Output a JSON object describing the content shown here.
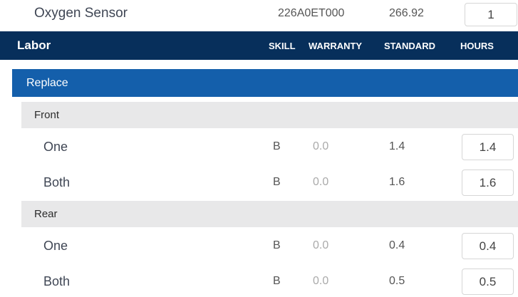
{
  "part": {
    "name": "Oxygen Sensor",
    "number": "226A0ET000",
    "price": "266.92",
    "quantity": "1"
  },
  "labor": {
    "title": "Labor",
    "columns": [
      "SKILL",
      "WARRANTY",
      "STANDARD",
      "HOURS"
    ],
    "operation": "Replace",
    "groups": [
      {
        "name": "Front",
        "rows": [
          {
            "label": "One",
            "skill": "B",
            "warranty": "0.0",
            "standard": "1.4",
            "hours": "1.4"
          },
          {
            "label": "Both",
            "skill": "B",
            "warranty": "0.0",
            "standard": "1.6",
            "hours": "1.6"
          }
        ]
      },
      {
        "name": "Rear",
        "rows": [
          {
            "label": "One",
            "skill": "B",
            "warranty": "0.0",
            "standard": "0.4",
            "hours": "0.4"
          },
          {
            "label": "Both",
            "skill": "B",
            "warranty": "0.0",
            "standard": "0.5",
            "hours": "0.5"
          }
        ]
      }
    ]
  },
  "colors": {
    "header": "#072f5b",
    "operation": "#145fab",
    "group": "#e8e8e9"
  }
}
